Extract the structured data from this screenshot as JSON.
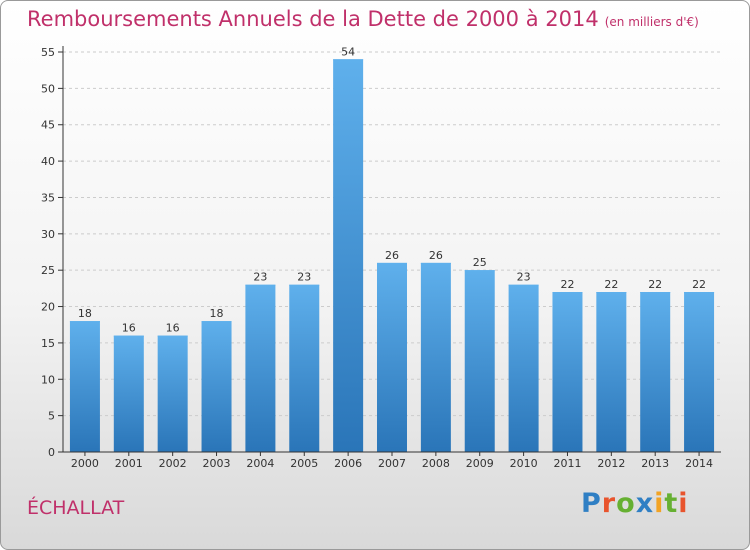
{
  "title": "Remboursements Annuels de la Dette de 2000 à 2014",
  "subtitle": "(en milliers d'€)",
  "place_name": "ÉCHALLAT",
  "logo": {
    "text": "Proxiti",
    "colors": [
      "#2f7fc4",
      "#e8542d",
      "#66b032",
      "#2f7fc4",
      "#f2a324",
      "#66b032",
      "#e8542d"
    ]
  },
  "colors": {
    "bar": "#3f97db",
    "bar_light": "#5fb0ec",
    "bar_dark": "#2a75b8",
    "title": "#c0306a",
    "axis": "#333333",
    "grid": "#cccccc"
  },
  "chart_data": {
    "type": "bar",
    "title": "Remboursements Annuels de la Dette de 2000 à 2014",
    "subtitle": "(en milliers d'€)",
    "categories": [
      "2000",
      "2001",
      "2002",
      "2003",
      "2004",
      "2005",
      "2006",
      "2007",
      "2008",
      "2009",
      "2010",
      "2011",
      "2012",
      "2013",
      "2014"
    ],
    "values": [
      18,
      16,
      16,
      18,
      23,
      23,
      54,
      26,
      26,
      25,
      23,
      22,
      22,
      22,
      22
    ],
    "ylim": [
      0,
      55
    ],
    "yticks": [
      0,
      5,
      10,
      15,
      20,
      25,
      30,
      35,
      40,
      45,
      50,
      55
    ],
    "grid": "horizontal dashed",
    "legend": "none",
    "xlabel": "",
    "ylabel": ""
  }
}
